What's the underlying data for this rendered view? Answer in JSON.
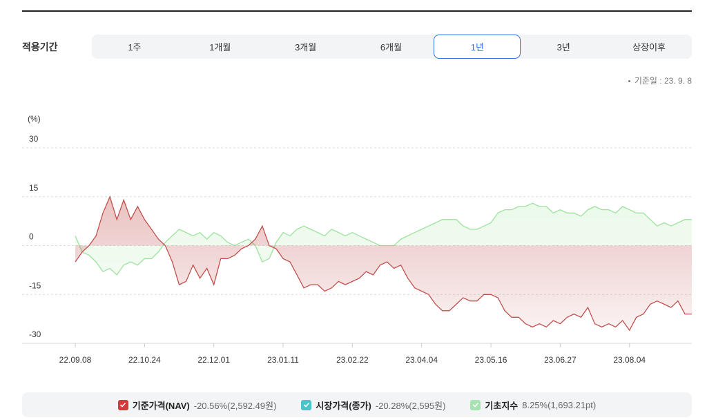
{
  "period_label": "적용기간",
  "tabs": [
    "1주",
    "1개월",
    "3개월",
    "6개월",
    "1년",
    "3년",
    "상장이후"
  ],
  "selected_tab": 4,
  "base_date": "기준일 : 23. 9. 8",
  "chart_data": {
    "type": "area",
    "y_label": "(%)",
    "ylim": [
      -30,
      30
    ],
    "yticks": [
      -30,
      -15,
      0,
      15,
      30
    ],
    "grid": true,
    "categories": [
      "22.09.08",
      null,
      null,
      null,
      null,
      null,
      null,
      null,
      null,
      null,
      "22.10.24",
      null,
      null,
      null,
      null,
      null,
      null,
      null,
      null,
      null,
      "22.12.01",
      null,
      null,
      null,
      null,
      null,
      null,
      null,
      null,
      null,
      "23.01.11",
      null,
      null,
      null,
      null,
      null,
      null,
      null,
      null,
      null,
      "23.02.22",
      null,
      null,
      null,
      null,
      null,
      null,
      null,
      null,
      null,
      "23.04.04",
      null,
      null,
      null,
      null,
      null,
      null,
      null,
      null,
      null,
      "23.05.16",
      null,
      null,
      null,
      null,
      null,
      null,
      null,
      null,
      null,
      "23.06.27",
      null,
      null,
      null,
      null,
      null,
      null,
      null,
      null,
      null,
      "23.08.04",
      null,
      null,
      null,
      null,
      null,
      null,
      null,
      null,
      null
    ],
    "series": [
      {
        "name": "기준가격(NAV)",
        "summary": "-20.56%(2,592.49원)",
        "color": "#d23b3b",
        "line_color": "#c0504d",
        "fill_color": "#c0504d",
        "values": [
          -5,
          -2,
          0,
          3,
          10,
          15,
          8,
          14,
          8,
          12,
          8,
          5,
          2,
          0,
          -5,
          -12,
          -11,
          -6,
          -10,
          -7,
          -12,
          -4,
          -4,
          -3,
          -1,
          0,
          2,
          6,
          0,
          -1,
          -4,
          -5,
          -9,
          -13,
          -12,
          -12,
          -14,
          -13,
          -11,
          -12,
          -11,
          -10,
          -8,
          -9,
          -6,
          -5,
          -7,
          -6,
          -10,
          -13,
          -14,
          -15,
          -18,
          -20,
          -20,
          -18,
          -16,
          -17,
          -17,
          -15,
          -15,
          -16,
          -20,
          -22,
          -22,
          -24,
          -25,
          -24,
          -25,
          -23,
          -24,
          -22,
          -21,
          -22,
          -19,
          -24,
          -25,
          -24,
          -25,
          -23,
          -26,
          -22,
          -21,
          -18,
          -17,
          -18,
          -19,
          -17,
          -21,
          -21
        ]
      },
      {
        "name": "시장가격(종가)",
        "summary": "-20.28%(2,595원)",
        "color": "#4cc3c9"
      },
      {
        "name": "기초지수",
        "summary": "8.25%(1,693.21pt)",
        "color": "#a6e3b1",
        "line_color": "#9ee29e",
        "fill_color": "#b8ecb8",
        "values": [
          3,
          -2,
          -3,
          -5,
          -8,
          -7,
          -9,
          -6,
          -5,
          -6,
          -4,
          -4,
          -2,
          1,
          3,
          5,
          4,
          3,
          4,
          2,
          4,
          3,
          1,
          0,
          1,
          2,
          0,
          -5,
          -4,
          1,
          4,
          3,
          5,
          6,
          5,
          4,
          3,
          5,
          4,
          3,
          4,
          3,
          2,
          1,
          0,
          0,
          0,
          2,
          3,
          4,
          5,
          6,
          7,
          8,
          8,
          8,
          6,
          5,
          5,
          6,
          7,
          10,
          11,
          11,
          12,
          12,
          13,
          12,
          12,
          10,
          11,
          10,
          10,
          9,
          11,
          12,
          11,
          11,
          10,
          12,
          11,
          10,
          10,
          8,
          6,
          7,
          6,
          7,
          8,
          8
        ]
      }
    ]
  }
}
